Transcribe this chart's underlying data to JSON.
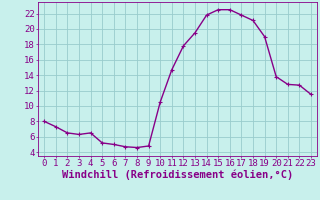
{
  "x": [
    0,
    1,
    2,
    3,
    4,
    5,
    6,
    7,
    8,
    9,
    10,
    11,
    12,
    13,
    14,
    15,
    16,
    17,
    18,
    19,
    20,
    21,
    22,
    23
  ],
  "y": [
    8.0,
    7.3,
    6.5,
    6.3,
    6.5,
    5.2,
    5.0,
    4.7,
    4.6,
    4.8,
    10.5,
    14.7,
    17.8,
    19.5,
    21.8,
    22.5,
    22.5,
    21.8,
    21.1,
    19.0,
    13.8,
    12.8,
    12.7,
    11.5
  ],
  "line_color": "#880088",
  "marker": "+",
  "marker_color": "#880088",
  "bg_color": "#c8f0ec",
  "grid_color": "#99cccc",
  "axis_color": "#880088",
  "tick_color": "#880088",
  "xlabel": "Windchill (Refroidissement éolien,°C)",
  "ylabel": "",
  "ylim": [
    3.5,
    23.5
  ],
  "xlim": [
    -0.5,
    23.5
  ],
  "yticks": [
    4,
    6,
    8,
    10,
    12,
    14,
    16,
    18,
    20,
    22
  ],
  "xticks": [
    0,
    1,
    2,
    3,
    4,
    5,
    6,
    7,
    8,
    9,
    10,
    11,
    12,
    13,
    14,
    15,
    16,
    17,
    18,
    19,
    20,
    21,
    22,
    23
  ],
  "font_size": 6.5,
  "xlabel_fontsize": 7.5,
  "line_width": 1.0,
  "marker_size": 3
}
